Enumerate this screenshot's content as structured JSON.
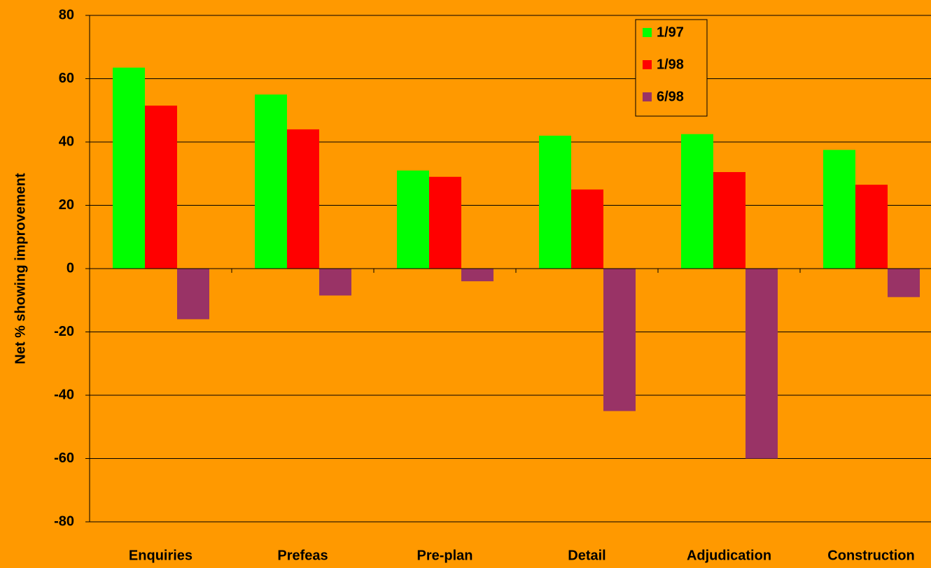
{
  "chart_data": {
    "type": "bar",
    "y_label": "Net % showing improvement",
    "categories": [
      "Enquiries",
      "Prefeas",
      "Pre-plan",
      "Detail",
      "Adjudication",
      "Construction"
    ],
    "series": [
      {
        "name": "1/97",
        "color": "#00FF00",
        "values": [
          63.5,
          55,
          31,
          42,
          42.5,
          37.5
        ]
      },
      {
        "name": "1/98",
        "color": "#FF0000",
        "values": [
          51.5,
          44,
          29,
          25,
          30.5,
          26.5
        ]
      },
      {
        "name": "6/98",
        "color": "#993366",
        "values": [
          -16,
          -8.5,
          -4,
          -45,
          -60,
          -9
        ]
      }
    ],
    "ylim": [
      -80,
      80
    ],
    "yticks": [
      -80,
      -60,
      -40,
      -20,
      0,
      20,
      40,
      60,
      80
    ],
    "grid": true,
    "legend": "upper-right"
  }
}
